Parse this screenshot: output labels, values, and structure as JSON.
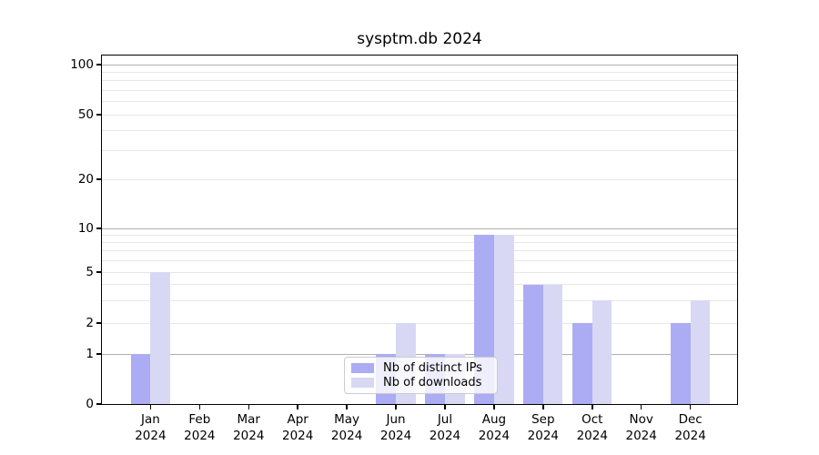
{
  "chart_data": {
    "type": "bar",
    "title": "sysptm.db 2024",
    "x_labels": [
      {
        "month": "Jan",
        "year": "2024"
      },
      {
        "month": "Feb",
        "year": "2024"
      },
      {
        "month": "Mar",
        "year": "2024"
      },
      {
        "month": "Apr",
        "year": "2024"
      },
      {
        "month": "May",
        "year": "2024"
      },
      {
        "month": "Jun",
        "year": "2024"
      },
      {
        "month": "Jul",
        "year": "2024"
      },
      {
        "month": "Aug",
        "year": "2024"
      },
      {
        "month": "Sep",
        "year": "2024"
      },
      {
        "month": "Oct",
        "year": "2024"
      },
      {
        "month": "Nov",
        "year": "2024"
      },
      {
        "month": "Dec",
        "year": "2024"
      }
    ],
    "series": [
      {
        "name": "Nb of distinct IPs",
        "color": "#acacf4",
        "values": [
          1,
          0,
          0,
          0,
          0,
          1,
          1,
          9,
          4,
          2,
          0,
          2
        ]
      },
      {
        "name": "Nb of downloads",
        "color": "#d8d8f5",
        "values": [
          5,
          0,
          0,
          0,
          0,
          2,
          1,
          9,
          4,
          3,
          0,
          3
        ]
      }
    ],
    "y_ticks": [
      0,
      1,
      2,
      5,
      10,
      20,
      50,
      100
    ],
    "y_grid_major": [
      1,
      10,
      100
    ],
    "y_grid_minor": [
      2,
      3,
      4,
      5,
      6,
      7,
      8,
      9,
      20,
      30,
      40,
      50,
      60,
      70,
      80,
      90
    ],
    "y_scale": "log-like with 0 baseline",
    "ylim": [
      0,
      115
    ],
    "grid": "horizontal",
    "legend": {
      "entries": [
        "Nb of distinct IPs",
        "Nb of downloads"
      ],
      "position": "bottom-center"
    },
    "colors": {
      "major_grid": "#b0b0b0",
      "minor_grid": "#e7e7e7",
      "axis": "#000000",
      "background": "#ffffff"
    }
  }
}
